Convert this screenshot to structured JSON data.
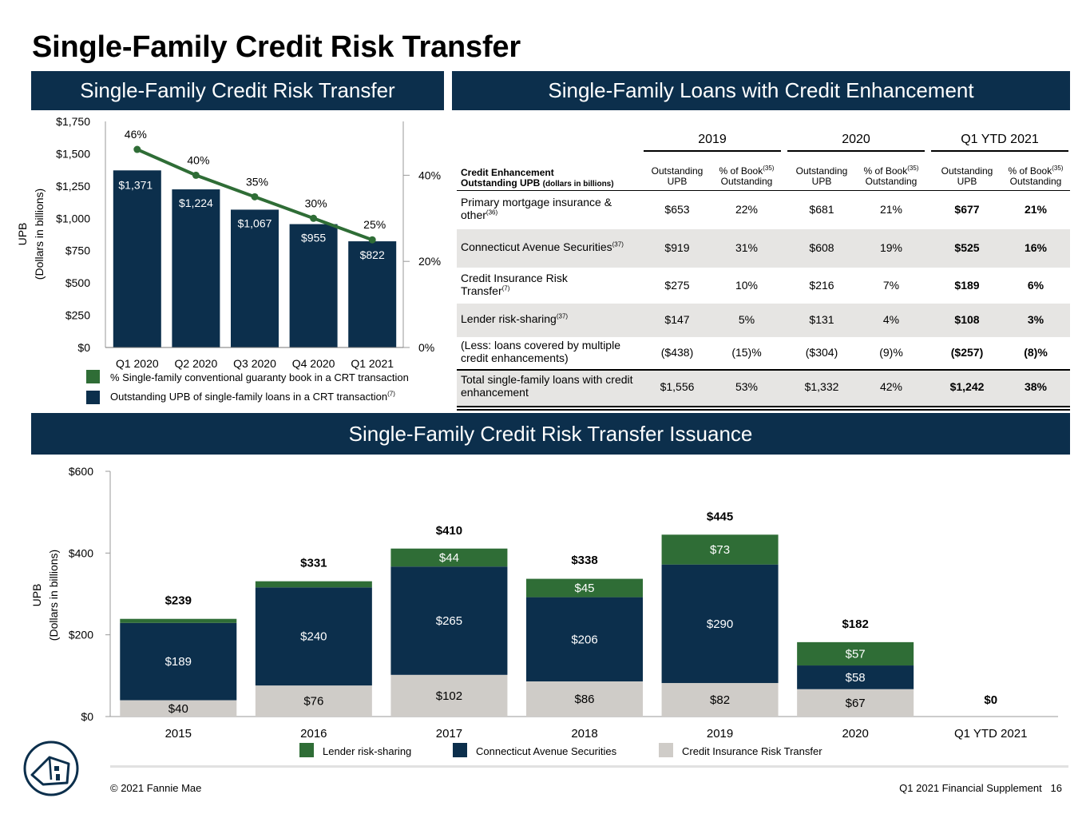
{
  "page_title": "Single-Family Credit Risk Transfer",
  "panels": {
    "crt_header": "Single-Family Credit Risk Transfer",
    "enhancement_header": "Single-Family Loans with Credit Enhancement",
    "issuance_header": "Single-Family Credit Risk Transfer Issuance"
  },
  "colors": {
    "navy": "#0c2f4c",
    "green": "#2f6d36",
    "gray": "#cfccc8",
    "shade": "#e6e5e3"
  },
  "chart_data": [
    {
      "type": "bar",
      "title": "Single-Family Credit Risk Transfer",
      "ylabel": "UPB",
      "ylabel_sub": "(Dollars in billions)",
      "categories": [
        "Q1 2020",
        "Q2 2020",
        "Q3 2020",
        "Q4 2020",
        "Q1 2021"
      ],
      "ylim": [
        0,
        1750
      ],
      "y_ticks": [
        "$0",
        "$250",
        "$500",
        "$750",
        "$1,000",
        "$1,250",
        "$1,500",
        "$1,750"
      ],
      "y2lim": [
        0,
        0.525
      ],
      "y2_ticks": [
        "0%",
        "20%",
        "40%"
      ],
      "series": [
        {
          "name": "Outstanding UPB of single-family loans in a CRT transaction",
          "footnote": "(7)",
          "type": "bar",
          "values": [
            1371,
            1224,
            1067,
            955,
            822
          ],
          "labels": [
            "$1,371",
            "$1,224",
            "$1,067",
            "$955",
            "$822"
          ]
        },
        {
          "name": "% Single-family conventional guaranty book in a CRT transaction",
          "type": "line",
          "values": [
            0.46,
            0.4,
            0.35,
            0.3,
            0.25
          ],
          "labels": [
            "46%",
            "40%",
            "35%",
            "30%",
            "25%"
          ]
        }
      ]
    },
    {
      "type": "bar",
      "stacked": true,
      "title": "Single-Family Credit Risk Transfer Issuance",
      "ylabel": "UPB",
      "ylabel_sub": "(Dollars in billions)",
      "categories": [
        "2015",
        "2016",
        "2017",
        "2018",
        "2019",
        "2020",
        "Q1 YTD 2021"
      ],
      "ylim": [
        0,
        600
      ],
      "y_ticks": [
        "$0",
        "$200",
        "$400",
        "$600"
      ],
      "totals": [
        239,
        331,
        410,
        338,
        445,
        182,
        0
      ],
      "total_labels": [
        "$239",
        "$331",
        "$410",
        "$338",
        "$445",
        "$182",
        "$0"
      ],
      "series": [
        {
          "name": "Credit Insurance Risk Transfer",
          "values": [
            40,
            76,
            102,
            86,
            82,
            67,
            0
          ],
          "labels": [
            "$40",
            "$76",
            "$102",
            "$86",
            "$82",
            "$67",
            ""
          ]
        },
        {
          "name": "Connecticut Avenue Securities",
          "values": [
            189,
            240,
            265,
            206,
            290,
            58,
            0
          ],
          "labels": [
            "$189",
            "$240",
            "$265",
            "$206",
            "$290",
            "$58",
            ""
          ]
        },
        {
          "name": "Lender risk-sharing",
          "values": [
            10,
            15,
            44,
            45,
            73,
            57,
            0
          ],
          "labels": [
            "",
            "",
            "$44",
            "$45",
            "$73",
            "$57",
            ""
          ]
        }
      ],
      "legend": [
        "Lender risk-sharing",
        "Connecticut Avenue Securities",
        "Credit Insurance Risk Transfer"
      ]
    }
  ],
  "table": {
    "years": [
      "2019",
      "2020",
      "Q1 YTD 2021"
    ],
    "row_header_line1": "Credit Enhancement",
    "row_header_line2": "Outstanding UPB",
    "row_header_small": "(dollars in billions)",
    "col_upb_1": "Outstanding",
    "col_upb_2": "UPB",
    "col_pct_1": "% of Book",
    "col_pct_sup": "(35)",
    "col_pct_2": "Outstanding",
    "rows": [
      {
        "label": "Primary mortgage insurance & other",
        "sup": "(36)",
        "values": [
          "$653",
          "22%",
          "$681",
          "21%",
          "$677",
          "21%"
        ]
      },
      {
        "label": "Connecticut Avenue Securities",
        "sup": "(37)",
        "values": [
          "$919",
          "31%",
          "$608",
          "19%",
          "$525",
          "16%"
        ]
      },
      {
        "label": "Credit Insurance Risk Transfer",
        "sup": "(7)",
        "values": [
          "$275",
          "10%",
          "$216",
          "7%",
          "$189",
          "6%"
        ]
      },
      {
        "label": "Lender risk-sharing",
        "sup": "(37)",
        "values": [
          "$147",
          "5%",
          "$131",
          "4%",
          "$108",
          "3%"
        ]
      },
      {
        "label": "(Less: loans covered by multiple credit enhancements)",
        "sup": "",
        "values": [
          "($438)",
          "(15)%",
          "($304)",
          "(9)%",
          "($257)",
          "(8)%"
        ]
      },
      {
        "label": "Total single-family loans with credit enhancement",
        "sup": "",
        "values": [
          "$1,556",
          "53%",
          "$1,332",
          "42%",
          "$1,242",
          "38%"
        ]
      }
    ]
  },
  "footer": {
    "copyright": "© 2021 Fannie Mae",
    "document": "Q1 2021 Financial Supplement",
    "page_number": "16"
  }
}
